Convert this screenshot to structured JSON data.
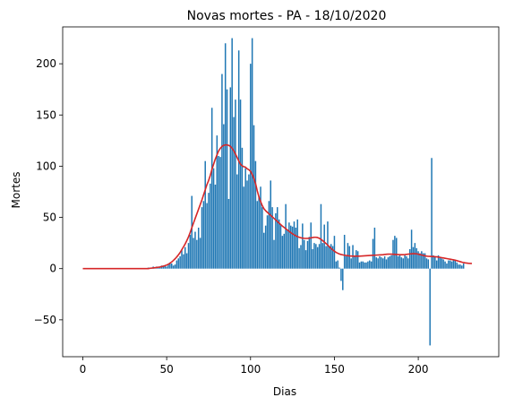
{
  "chart_data": {
    "type": "bar",
    "title": "Novas mortes - PA - 18/10/2020",
    "xlabel": "Dias",
    "ylabel": "Mortes",
    "xlim": [
      -12,
      248
    ],
    "ylim": [
      -86,
      236
    ],
    "x_ticks": [
      0,
      50,
      100,
      150,
      200
    ],
    "y_ticks": [
      -50,
      0,
      50,
      100,
      150,
      200
    ],
    "grid": false,
    "colors": {
      "bars": "#1f77b4",
      "trend": "#d62728"
    },
    "series": [
      {
        "kind": "bar",
        "x_start": 0,
        "values": [
          0,
          0,
          0,
          0,
          0,
          0,
          0,
          0,
          0,
          0,
          0,
          0,
          0,
          0,
          0,
          0,
          0,
          0,
          0,
          0,
          0,
          0,
          0,
          0,
          0,
          0,
          0,
          0,
          0,
          0,
          0,
          0,
          0,
          0,
          0,
          0,
          0,
          0,
          0,
          1,
          1,
          1,
          2,
          1,
          2,
          2,
          2,
          3,
          3,
          3,
          2,
          4,
          6,
          5,
          3,
          4,
          8,
          10,
          12,
          18,
          14,
          21,
          15,
          25,
          33,
          71,
          30,
          36,
          28,
          40,
          30,
          60,
          66,
          105,
          64,
          74,
          83,
          157,
          98,
          82,
          130,
          110,
          109,
          190,
          141,
          220,
          175,
          68,
          177,
          225,
          148,
          165,
          92,
          213,
          165,
          118,
          80,
          98,
          86,
          92,
          200,
          225,
          140,
          105,
          66,
          70,
          80,
          60,
          35,
          42,
          52,
          66,
          86,
          60,
          28,
          54,
          60,
          48,
          43,
          32,
          34,
          63,
          38,
          45,
          42,
          41,
          46,
          40,
          48,
          20,
          23,
          44,
          28,
          18,
          27,
          31,
          45,
          19,
          25,
          24,
          21,
          24,
          63,
          25,
          43,
          22,
          46,
          22,
          24,
          22,
          32,
          7,
          8,
          1,
          -12,
          -21,
          33,
          12,
          25,
          22,
          10,
          23,
          12,
          18,
          17,
          6,
          7,
          7,
          6,
          6,
          7,
          8,
          7,
          29,
          40,
          11,
          10,
          12,
          11,
          10,
          12,
          9,
          11,
          12,
          13,
          28,
          32,
          30,
          12,
          14,
          11,
          10,
          13,
          12,
          10,
          19,
          38,
          21,
          25,
          20,
          17,
          15,
          17,
          15,
          15,
          10,
          9,
          -75,
          108,
          13,
          12,
          8,
          13,
          11,
          10,
          9,
          7,
          5,
          8,
          8,
          7,
          9,
          8,
          6,
          4,
          4,
          3,
          5
        ]
      },
      {
        "kind": "line",
        "x_start": 0,
        "values": [
          0,
          0,
          0,
          0,
          0,
          0,
          0,
          0,
          0,
          0,
          0,
          0,
          0,
          0,
          0,
          0,
          0,
          0,
          0,
          0,
          0,
          0,
          0,
          0,
          0,
          0,
          0,
          0,
          0,
          0,
          0,
          0,
          0,
          0,
          0,
          0,
          0,
          0,
          0,
          0,
          0.3,
          0.5,
          0.7,
          0.9,
          1.1,
          1.3,
          1.6,
          2,
          2.4,
          2.9,
          3.5,
          4.3,
          5.3,
          6.5,
          8,
          9.6,
          11.4,
          13.4,
          15.7,
          18.4,
          21.2,
          24,
          27.3,
          31,
          35.3,
          40,
          44.5,
          49,
          53.5,
          58,
          62.5,
          67,
          72,
          77,
          82,
          86,
          91,
          97,
          102,
          107,
          111,
          115,
          117.5,
          119.3,
          120.3,
          120.8,
          120.8,
          120.3,
          119.3,
          117.4,
          115,
          112,
          108.5,
          105,
          102,
          100.3,
          99.5,
          99,
          97.5,
          96.5,
          95,
          92,
          88,
          83,
          76,
          70,
          65.5,
          61.5,
          58.5,
          56.5,
          55,
          53.5,
          52,
          50.5,
          49,
          47.5,
          46,
          44.5,
          43,
          41.5,
          40.2,
          38.9,
          37.7,
          36.5,
          35.2,
          34,
          33,
          32,
          31.2,
          30.6,
          30.1,
          29.8,
          29.6,
          29.5,
          29.5,
          29.7,
          30,
          30.3,
          30.6,
          30.6,
          30.3,
          29.6,
          28.6,
          27.3,
          25.9,
          24.5,
          23,
          21.4,
          19.8,
          18.3,
          17,
          15.9,
          15,
          14.3,
          13.8,
          13.4,
          13.1,
          12.8,
          12.6,
          12.4,
          12.3,
          12.2,
          12.2,
          12.2,
          12.2,
          12.2,
          12.3,
          12.4,
          12.5,
          12.6,
          12.7,
          12.8,
          12.9,
          13,
          13.1,
          13.2,
          13.3,
          13.4,
          13.5,
          13.6,
          13.8,
          14,
          14.1,
          14.1,
          14.1,
          14,
          13.9,
          13.8,
          13.7,
          13.6,
          13.6,
          13.6,
          13.7,
          13.9,
          14.1,
          14.3,
          14.5,
          14.6,
          14.6,
          14.4,
          14.1,
          13.7,
          13.3,
          12.9,
          12.5,
          12.2,
          12,
          11.9,
          11.8,
          11.7,
          11.6,
          11.5,
          11.3,
          11,
          10.7,
          10.4,
          10.1,
          9.8,
          9.5,
          9.2,
          8.9,
          8.6,
          8.2,
          7.8,
          7.3,
          6.8,
          6.3,
          5.9,
          5.6,
          5.4,
          5.2,
          5.1,
          5
        ]
      }
    ]
  }
}
